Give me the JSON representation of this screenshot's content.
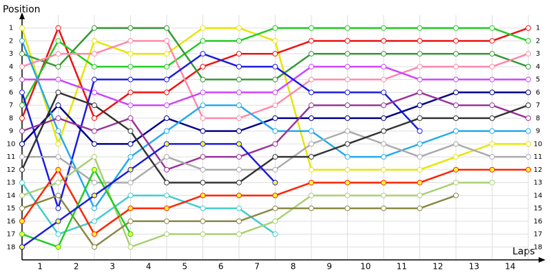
{
  "chart_data": {
    "type": "line",
    "y_label": "Position",
    "x_label": "Laps",
    "x": [
      0,
      1,
      2,
      3,
      4,
      5,
      6,
      7,
      8,
      9,
      10,
      11,
      12,
      13,
      14
    ],
    "xlim": [
      0,
      14
    ],
    "xticks": [
      {
        "value": 0.5,
        "label": "1"
      },
      {
        "value": 1.5,
        "label": "2"
      },
      {
        "value": 2.5,
        "label": "3"
      },
      {
        "value": 3.5,
        "label": "4"
      },
      {
        "value": 4.5,
        "label": "5"
      },
      {
        "value": 5.5,
        "label": "6"
      },
      {
        "value": 6.5,
        "label": "7"
      },
      {
        "value": 7.5,
        "label": "8"
      },
      {
        "value": 8.5,
        "label": "9"
      },
      {
        "value": 9.5,
        "label": "10"
      },
      {
        "value": 10.5,
        "label": "11"
      },
      {
        "value": 11.5,
        "label": "12"
      },
      {
        "value": 12.5,
        "label": "13"
      },
      {
        "value": 13.5,
        "label": "14"
      }
    ],
    "ylim": [
      19,
      0
    ],
    "yticks": [
      1,
      2,
      3,
      4,
      5,
      6,
      7,
      8,
      9,
      10,
      11,
      12,
      13,
      14,
      15,
      16,
      17,
      18
    ],
    "grid": true,
    "series": [
      {
        "color": "#e6e600",
        "marker_color": "#ffffff",
        "values": [
          1,
          10,
          2,
          3,
          3,
          1,
          1,
          2,
          12,
          12,
          12,
          12,
          11,
          10,
          10
        ]
      },
      {
        "color": "#ee1111",
        "marker_color": "#ffffff",
        "values": [
          8,
          1,
          8,
          6,
          6,
          4,
          3,
          3,
          2,
          2,
          2,
          2,
          2,
          2,
          1
        ]
      },
      {
        "color": "#22cc22",
        "marker_color": "#ffffff",
        "values": [
          7,
          2,
          4,
          4,
          4,
          2,
          2,
          1,
          1,
          1,
          1,
          1,
          1,
          1,
          2
        ]
      },
      {
        "color": "#339933",
        "marker_color": "#ffffff",
        "values": [
          3,
          4,
          1,
          1,
          1,
          5,
          5,
          5,
          3,
          3,
          3,
          3,
          3,
          3,
          4
        ]
      },
      {
        "color": "#ff88aa",
        "marker_color": "#ffffff",
        "values": [
          4,
          3,
          3,
          2,
          2,
          8,
          8,
          7,
          5,
          5,
          5,
          4,
          4,
          4,
          3
        ]
      },
      {
        "color": "#cc44ff",
        "marker_color": "#ffffff",
        "values": [
          5,
          5,
          6,
          7,
          7,
          6,
          6,
          6,
          4,
          4,
          4,
          5,
          5,
          5,
          5
        ]
      },
      {
        "color": "#1a1ae0",
        "marker_color": "#ffffff",
        "values": [
          6,
          15,
          5,
          5,
          5,
          3,
          4,
          4,
          6,
          6,
          6,
          9,
          null,
          null,
          null
        ]
      },
      {
        "color": "#000088",
        "marker_color": "#ffffff",
        "values": [
          10,
          7,
          10,
          10,
          8,
          9,
          9,
          8,
          8,
          8,
          8,
          7,
          6,
          6,
          6
        ]
      },
      {
        "color": "#22aaee",
        "marker_color": "#ffffff",
        "values": [
          2,
          9,
          15,
          11,
          9,
          7,
          7,
          9,
          9,
          11,
          11,
          10,
          9,
          9,
          9
        ]
      },
      {
        "color": "#993399",
        "marker_color": "#ffffff",
        "values": [
          9,
          8,
          9,
          8,
          12,
          11,
          11,
          10,
          7,
          7,
          7,
          6,
          7,
          7,
          8
        ]
      },
      {
        "color": "#aaaaaa",
        "marker_color": "#ffffff",
        "values": [
          11,
          11,
          13,
          13,
          11,
          12,
          12,
          12,
          10,
          9,
          10,
          11,
          10,
          11,
          11
        ]
      },
      {
        "color": "#333333",
        "marker_color": "#ffffff",
        "values": [
          12,
          6,
          7,
          9,
          13,
          13,
          13,
          11,
          11,
          10,
          9,
          8,
          8,
          8,
          7
        ]
      },
      {
        "color": "#44cccc",
        "marker_color": "#ffffff",
        "values": [
          13,
          17,
          16,
          14,
          14,
          15,
          15,
          17,
          null,
          null,
          null,
          null,
          null,
          null,
          null
        ]
      },
      {
        "color": "#a8d070",
        "marker_color": "#ffffff",
        "values": [
          14,
          13,
          11,
          18,
          17,
          17,
          17,
          16,
          14,
          14,
          14,
          14,
          13,
          13,
          null
        ]
      },
      {
        "color": "#888844",
        "marker_color": "#ffffff",
        "values": [
          15,
          14,
          18,
          16,
          16,
          16,
          16,
          15,
          15,
          15,
          15,
          15,
          14,
          null,
          null
        ]
      },
      {
        "color": "#ff2200",
        "marker_color": "#ffff33",
        "values": [
          16,
          12,
          17,
          15,
          15,
          14,
          14,
          14,
          13,
          13,
          13,
          13,
          12,
          12,
          12
        ]
      },
      {
        "color": "#22cc22",
        "marker_color": "#ffff33",
        "values": [
          17,
          18,
          12,
          17,
          null,
          null,
          null,
          null,
          null,
          null,
          null,
          null,
          null,
          null,
          null
        ]
      },
      {
        "color": "#1a1ae0",
        "marker_color": "#ffff33",
        "values": [
          18,
          16,
          14,
          12,
          10,
          10,
          10,
          13,
          null,
          null,
          null,
          null,
          null,
          null,
          null
        ]
      }
    ]
  }
}
